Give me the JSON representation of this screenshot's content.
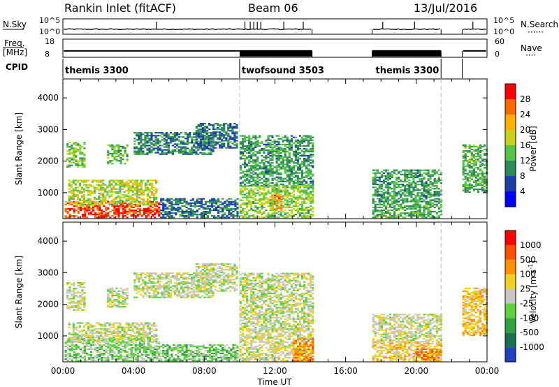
{
  "header": {
    "station": "Rankin Inlet (fitACF)",
    "beam": "Beam 06",
    "date": "13/Jul/2016"
  },
  "chart_data": [
    {
      "type": "line",
      "panel": "noise",
      "left_label": "N.Sky",
      "right_label": "N.Search",
      "left_ticks": [
        "10^5",
        "10^0"
      ],
      "right_ticks": [
        "10^5",
        "10^0"
      ],
      "yscale": "log",
      "ylim": [
        1,
        100000
      ],
      "data_gaps_ut": [
        [
          14.1,
          17.5
        ],
        [
          21.4,
          22.6
        ]
      ],
      "spikes_ut": [
        5.3,
        10.3,
        10.6,
        10.8,
        11.0,
        11.2,
        12.5,
        13.6,
        18.1,
        19.9,
        23.2
      ],
      "baseline": 40
    },
    {
      "type": "line",
      "panel": "frequency",
      "left_label": "Freq.",
      "left_unit": "[MHz]",
      "right_label": "Nave",
      "left_ticks": [
        "18",
        "8"
      ],
      "right_ticks": [
        "60",
        "0"
      ],
      "ylim": [
        8,
        18
      ],
      "frequency_mhz": 11.5,
      "nave_dense_intervals_ut": [
        [
          10.0,
          14.1
        ],
        [
          17.5,
          21.4
        ]
      ]
    },
    {
      "type": "table",
      "panel": "cpid",
      "label": "CPID",
      "segments": [
        {
          "name": "themis 3300",
          "start": 0.0,
          "end": 10.0
        },
        {
          "name": "twofsound 3503",
          "start": 10.0,
          "end": 21.4
        },
        {
          "name": "themis 3300",
          "start": 21.4,
          "end": 22.6
        }
      ]
    },
    {
      "type": "heatmap",
      "panel": "power",
      "ylabel": "Slant Range [km]",
      "colorbar_label": "Power [dB]",
      "colorbar_ticks": [
        "4",
        "8",
        "12",
        "16",
        "20",
        "24",
        "28"
      ],
      "clim": [
        0,
        30
      ],
      "yticks": [
        "1000",
        "2000",
        "3000",
        "4000"
      ],
      "ylim": [
        180,
        4600
      ],
      "xlim": [
        0,
        24
      ],
      "colors": [
        "#0000ff",
        "#1c3fa8",
        "#2e8b57",
        "#55c24a",
        "#c9d21a",
        "#ffb000",
        "#ff6a00",
        "#ff0000"
      ],
      "patches": [
        {
          "t0": 0.1,
          "t1": 5.5,
          "r0": 200,
          "r1": 700,
          "level": 6.5
        },
        {
          "t0": 0.3,
          "t1": 5.3,
          "r0": 600,
          "r1": 1400,
          "level": 3.8
        },
        {
          "t0": 0.2,
          "t1": 1.2,
          "r0": 1800,
          "r1": 2600,
          "level": 3.0
        },
        {
          "t0": 2.5,
          "t1": 3.6,
          "r0": 1900,
          "r1": 2500,
          "level": 2.8
        },
        {
          "t0": 4.0,
          "t1": 8.5,
          "r0": 2200,
          "r1": 2900,
          "level": 1.8
        },
        {
          "t0": 7.5,
          "t1": 9.8,
          "r0": 2400,
          "r1": 3200,
          "level": 1.6
        },
        {
          "t0": 5.5,
          "t1": 9.9,
          "r0": 200,
          "r1": 800,
          "level": 1.6
        },
        {
          "t0": 10.0,
          "t1": 14.1,
          "r0": 1200,
          "r1": 2800,
          "level": 2.4
        },
        {
          "t0": 10.0,
          "t1": 14.1,
          "r0": 200,
          "r1": 1200,
          "level": 3.4
        },
        {
          "t0": 11.7,
          "t1": 12.3,
          "r0": 400,
          "r1": 900,
          "level": 5.5
        },
        {
          "t0": 17.5,
          "t1": 21.4,
          "r0": 200,
          "r1": 700,
          "level": 2.6
        },
        {
          "t0": 17.5,
          "t1": 21.4,
          "r0": 700,
          "r1": 1700,
          "level": 2.4
        },
        {
          "t0": 22.6,
          "t1": 24.0,
          "r0": 1000,
          "r1": 2500,
          "level": 2.6
        }
      ]
    },
    {
      "type": "heatmap",
      "panel": "velocity",
      "ylabel": "Slant Range [km]",
      "colorbar_label": "Velocity [m s^-1]",
      "colorbar_ticks": [
        "1000",
        "500",
        "100",
        "25",
        "-25",
        "-100",
        "-500",
        "-1000"
      ],
      "clim": [
        -1000,
        1000
      ],
      "yticks": [
        "1000",
        "2000",
        "3000",
        "4000"
      ],
      "ylim": [
        180,
        4600
      ],
      "xlim": [
        0,
        24
      ],
      "colors": [
        "#2040c0",
        "#1c7050",
        "#30a040",
        "#60d040",
        "#c8c8c0",
        "#f0d020",
        "#ff9000",
        "#ff5000",
        "#ff0000"
      ],
      "xticks": [
        "00:00",
        "04:00",
        "08:00",
        "12:00",
        "16:00",
        "20:00",
        "00:00"
      ],
      "xlabel": "Time UT",
      "patches": [
        {
          "t0": 0.1,
          "t1": 5.5,
          "r0": 200,
          "r1": 900,
          "level": 3.2
        },
        {
          "t0": 0.3,
          "t1": 5.3,
          "r0": 800,
          "r1": 1400,
          "level": 4.0
        },
        {
          "t0": 0.2,
          "t1": 1.2,
          "r0": 1800,
          "r1": 2700,
          "level": 4.0
        },
        {
          "t0": 2.5,
          "t1": 3.6,
          "r0": 1900,
          "r1": 2500,
          "level": 4.0
        },
        {
          "t0": 4.0,
          "t1": 8.5,
          "r0": 2200,
          "r1": 3000,
          "level": 4.0
        },
        {
          "t0": 7.5,
          "t1": 9.8,
          "r0": 2400,
          "r1": 3300,
          "level": 4.0
        },
        {
          "t0": 5.5,
          "t1": 9.9,
          "r0": 200,
          "r1": 700,
          "level": 3.0
        },
        {
          "t0": 10.0,
          "t1": 14.1,
          "r0": 1200,
          "r1": 3000,
          "level": 4.0
        },
        {
          "t0": 10.0,
          "t1": 14.1,
          "r0": 200,
          "r1": 1200,
          "level": 4.3
        },
        {
          "t0": 13.0,
          "t1": 14.1,
          "r0": 200,
          "r1": 900,
          "level": 6.0
        },
        {
          "t0": 17.5,
          "t1": 21.4,
          "r0": 200,
          "r1": 800,
          "level": 5.0
        },
        {
          "t0": 17.5,
          "t1": 21.4,
          "r0": 800,
          "r1": 1700,
          "level": 4.2
        },
        {
          "t0": 20.0,
          "t1": 21.4,
          "r0": 200,
          "r1": 600,
          "level": 6.2
        },
        {
          "t0": 22.6,
          "t1": 24.0,
          "r0": 1000,
          "r1": 2500,
          "level": 5.2
        }
      ]
    }
  ]
}
